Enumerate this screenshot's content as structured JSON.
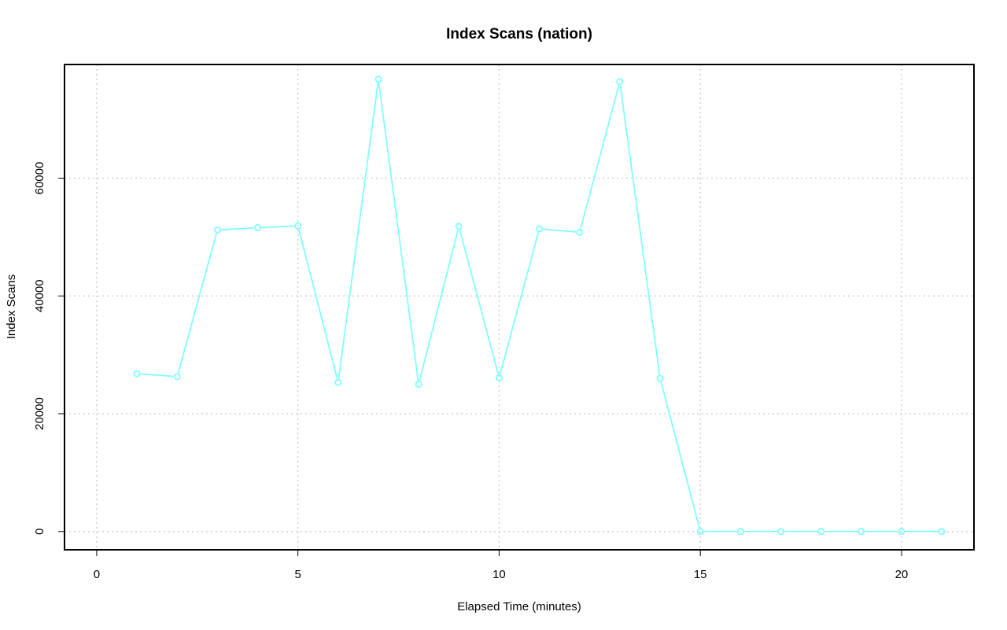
{
  "chart_data": {
    "type": "line",
    "title": "Index Scans (nation)",
    "xlabel": "Elapsed Time (minutes)",
    "ylabel": "Index Scans",
    "xlim": [
      -0.8,
      21.8
    ],
    "ylim": [
      -3100,
      79300
    ],
    "x_ticks": [
      0,
      5,
      10,
      15,
      20
    ],
    "x_tick_labels": [
      "0",
      "5",
      "10",
      "15",
      "20"
    ],
    "y_ticks": [
      0,
      20000,
      40000,
      60000
    ],
    "y_tick_labels": [
      "0",
      "20000",
      "40000",
      "60000"
    ],
    "grid": true,
    "legend": "none",
    "series": [
      {
        "color": "#80ffff",
        "marker": "open-circle",
        "x": [
          1,
          2,
          3,
          4,
          5,
          6,
          7,
          8,
          9,
          10,
          11,
          12,
          13,
          14,
          15,
          16,
          17,
          18,
          19,
          20,
          21
        ],
        "values": [
          26800,
          26300,
          51200,
          51600,
          51900,
          25300,
          76800,
          25000,
          51800,
          26100,
          51400,
          50800,
          76400,
          26000,
          0,
          0,
          0,
          0,
          0,
          0,
          0
        ]
      }
    ]
  }
}
